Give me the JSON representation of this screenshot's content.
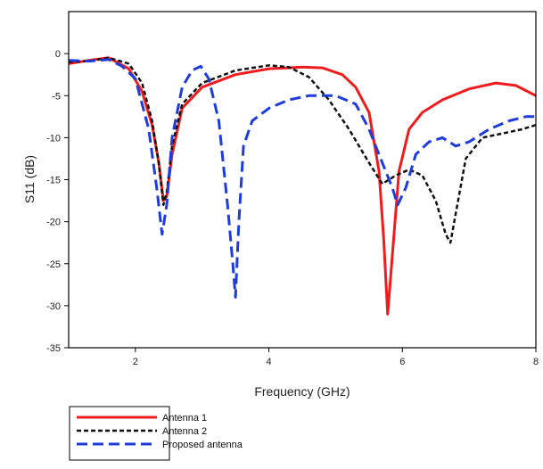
{
  "chart_data": {
    "type": "line",
    "title": "",
    "xlabel": "Frequency (GHz)",
    "ylabel": "S11 (dB)",
    "xlim": [
      1,
      8
    ],
    "ylim": [
      -35,
      5
    ],
    "x_ticks": [
      2,
      4,
      6,
      8
    ],
    "y_ticks": [
      0,
      -5,
      -10,
      -15,
      -20,
      -25,
      -30,
      -35
    ],
    "grid": false,
    "legend_position": "bottom-left, outside plot",
    "series": [
      {
        "name": "Antenna 1",
        "color": "#ee1c1c",
        "style": "solid",
        "x": [
          1.0,
          1.3,
          1.6,
          1.9,
          2.1,
          2.25,
          2.35,
          2.42,
          2.47,
          2.55,
          2.7,
          3.0,
          3.5,
          4.0,
          4.5,
          4.8,
          5.1,
          5.3,
          5.5,
          5.65,
          5.72,
          5.78,
          5.84,
          5.95,
          6.1,
          6.3,
          6.6,
          7.0,
          7.4,
          7.7,
          8.0
        ],
        "y": [
          -1.2,
          -0.8,
          -0.5,
          -1.8,
          -4.5,
          -8.5,
          -13,
          -17.5,
          -17,
          -12,
          -6.5,
          -4,
          -2.5,
          -1.8,
          -1.6,
          -1.7,
          -2.5,
          -4,
          -7,
          -14,
          -22,
          -31,
          -25,
          -14,
          -9,
          -7,
          -5.5,
          -4.2,
          -3.5,
          -3.8,
          -5
        ]
      },
      {
        "name": "Antenna 2",
        "color": "#111111",
        "style": "dotted",
        "x": [
          1.0,
          1.3,
          1.6,
          1.9,
          2.1,
          2.25,
          2.35,
          2.42,
          2.47,
          2.55,
          2.7,
          3.0,
          3.5,
          4.0,
          4.3,
          4.6,
          4.9,
          5.2,
          5.5,
          5.7,
          5.9,
          6.1,
          6.3,
          6.5,
          6.65,
          6.72,
          6.8,
          6.95,
          7.2,
          7.5,
          7.8,
          8.0
        ],
        "y": [
          -1.0,
          -0.9,
          -0.5,
          -1.2,
          -3.5,
          -8,
          -13,
          -18,
          -16.5,
          -11,
          -6,
          -3.5,
          -2,
          -1.4,
          -1.6,
          -2.8,
          -5.5,
          -9,
          -13,
          -15.5,
          -14.5,
          -13.8,
          -14.5,
          -17.5,
          -21.5,
          -22.5,
          -19,
          -12.5,
          -10,
          -9.5,
          -9,
          -8.5
        ]
      },
      {
        "name": "Proposed antenna",
        "color": "#1e3cdc",
        "style": "dashed",
        "x": [
          1.0,
          1.3,
          1.6,
          1.8,
          2.0,
          2.2,
          2.32,
          2.4,
          2.47,
          2.55,
          2.7,
          2.85,
          2.98,
          3.1,
          3.25,
          3.38,
          3.46,
          3.5,
          3.55,
          3.62,
          3.75,
          4.0,
          4.3,
          4.6,
          5.0,
          5.3,
          5.5,
          5.7,
          5.85,
          5.93,
          6.05,
          6.2,
          6.4,
          6.6,
          6.8,
          7.0,
          7.3,
          7.6,
          7.85,
          8.0
        ],
        "y": [
          -0.8,
          -0.9,
          -0.7,
          -1.5,
          -3,
          -9,
          -16,
          -21.5,
          -18,
          -10,
          -4,
          -2,
          -1.5,
          -3,
          -8,
          -18,
          -25,
          -29,
          -20,
          -11,
          -8,
          -6.5,
          -5.5,
          -5,
          -5,
          -6,
          -9,
          -13,
          -16,
          -18,
          -16,
          -12,
          -10.5,
          -10,
          -11,
          -10.5,
          -9,
          -8,
          -7.5,
          -7.5
        ]
      }
    ]
  },
  "legend": {
    "items": [
      {
        "label": "Antenna 1",
        "color": "#ee1c1c",
        "style": "solid"
      },
      {
        "label": "Antenna 2",
        "color": "#111111",
        "style": "dotted"
      },
      {
        "label": "Proposed antenna",
        "color": "#1e3cdc",
        "style": "dashed"
      }
    ]
  }
}
